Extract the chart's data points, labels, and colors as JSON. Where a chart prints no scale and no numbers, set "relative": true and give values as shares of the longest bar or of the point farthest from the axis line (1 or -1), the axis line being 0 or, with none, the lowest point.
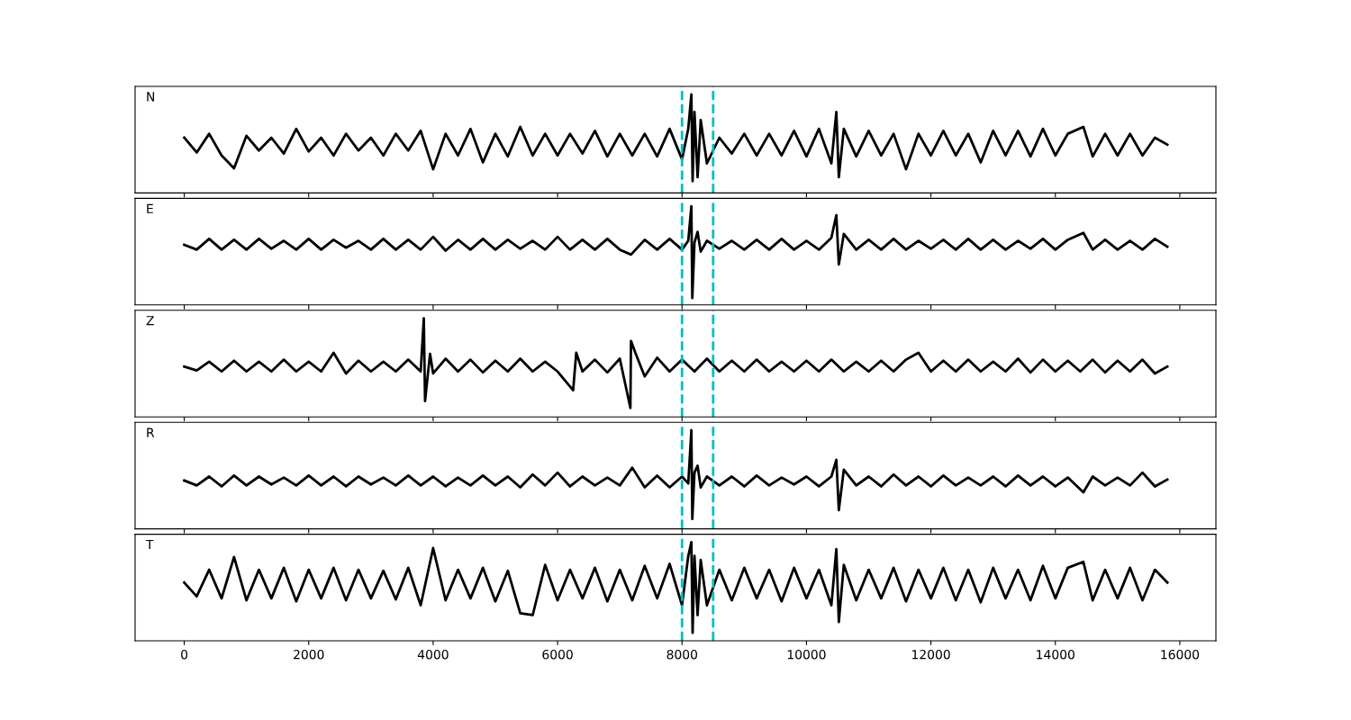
{
  "chart_data": [
    {
      "type": "line",
      "relative": true,
      "xlim": [
        -790,
        16580
      ],
      "xticks": [
        0,
        2000,
        4000,
        6000,
        8000,
        10000,
        12000,
        14000,
        16000
      ],
      "tick_labels": false,
      "annotations": [
        "N"
      ],
      "ref_lines": [
        {
          "axis": "x",
          "value": 8000,
          "color": "#00bfbf",
          "line_style": "dashed"
        },
        {
          "axis": "x",
          "value": 8500,
          "color": "#00bfbf",
          "line_style": "dashed"
        }
      ],
      "series": [
        {
          "color": "#000000",
          "x": [
            0,
            200,
            400,
            600,
            800,
            1000,
            1200,
            1400,
            1600,
            1800,
            2000,
            2200,
            2400,
            2600,
            2800,
            3000,
            3200,
            3400,
            3600,
            3800,
            4000,
            4200,
            4400,
            4600,
            4800,
            5000,
            5200,
            5400,
            5600,
            5800,
            6000,
            6200,
            6400,
            6600,
            6800,
            7000,
            7200,
            7400,
            7600,
            7800,
            8000,
            8100,
            8150,
            8170,
            8200,
            8250,
            8300,
            8400,
            8600,
            8800,
            9000,
            9200,
            9400,
            9600,
            9800,
            10000,
            10200,
            10400,
            10480,
            10520,
            10600,
            10800,
            11000,
            11200,
            11400,
            11600,
            11800,
            12000,
            12200,
            12400,
            12600,
            12800,
            13000,
            13200,
            13400,
            13600,
            13800,
            14000,
            14200,
            14450,
            14600,
            14800,
            15000,
            15200,
            15400,
            15600,
            15800
          ],
          "values": [
            0.56,
            0.41,
            0.6,
            0.38,
            0.25,
            0.58,
            0.43,
            0.56,
            0.4,
            0.65,
            0.42,
            0.56,
            0.38,
            0.6,
            0.43,
            0.56,
            0.38,
            0.6,
            0.43,
            0.63,
            0.24,
            0.6,
            0.38,
            0.65,
            0.31,
            0.6,
            0.37,
            0.67,
            0.38,
            0.6,
            0.38,
            0.6,
            0.4,
            0.63,
            0.37,
            0.6,
            0.38,
            0.6,
            0.37,
            0.65,
            0.34,
            0.65,
            1.0,
            0.12,
            0.82,
            0.16,
            0.74,
            0.3,
            0.56,
            0.4,
            0.6,
            0.38,
            0.6,
            0.38,
            0.63,
            0.37,
            0.65,
            0.3,
            0.82,
            0.16,
            0.65,
            0.37,
            0.63,
            0.38,
            0.6,
            0.24,
            0.6,
            0.38,
            0.63,
            0.38,
            0.6,
            0.31,
            0.63,
            0.38,
            0.63,
            0.37,
            0.65,
            0.38,
            0.6,
            0.67,
            0.37,
            0.6,
            0.38,
            0.6,
            0.38,
            0.56,
            0.49
          ]
        }
      ]
    },
    {
      "type": "line",
      "relative": true,
      "xlim": [
        -790,
        16580
      ],
      "xticks": [
        0,
        2000,
        4000,
        6000,
        8000,
        10000,
        12000,
        14000,
        16000
      ],
      "tick_labels": false,
      "annotations": [
        "E"
      ],
      "ref_lines": [
        {
          "axis": "x",
          "value": 8000,
          "color": "#00bfbf",
          "line_style": "dashed"
        },
        {
          "axis": "x",
          "value": 8500,
          "color": "#00bfbf",
          "line_style": "dashed"
        }
      ],
      "series": [
        {
          "color": "#000000",
          "x": [
            0,
            200,
            400,
            600,
            800,
            1000,
            1200,
            1400,
            1600,
            1800,
            2000,
            2200,
            2400,
            2600,
            2800,
            3000,
            3200,
            3400,
            3600,
            3800,
            4000,
            4200,
            4400,
            4600,
            4800,
            5000,
            5200,
            5400,
            5600,
            5800,
            6000,
            6200,
            6400,
            6600,
            6800,
            7000,
            7180,
            7400,
            7600,
            7800,
            8000,
            8100,
            8150,
            8165,
            8200,
            8250,
            8300,
            8400,
            8600,
            8800,
            9000,
            9200,
            9400,
            9600,
            9800,
            10000,
            10200,
            10400,
            10480,
            10520,
            10600,
            10800,
            11000,
            11200,
            11400,
            11600,
            11800,
            12000,
            12200,
            12400,
            12600,
            12800,
            13000,
            13200,
            13400,
            13600,
            13800,
            14000,
            14200,
            14450,
            14600,
            14800,
            15000,
            15200,
            15400,
            15600,
            15800
          ],
          "values": [
            0.61,
            0.56,
            0.67,
            0.56,
            0.66,
            0.56,
            0.67,
            0.57,
            0.65,
            0.56,
            0.67,
            0.56,
            0.66,
            0.58,
            0.65,
            0.56,
            0.67,
            0.56,
            0.66,
            0.56,
            0.69,
            0.55,
            0.66,
            0.56,
            0.67,
            0.56,
            0.66,
            0.57,
            0.65,
            0.56,
            0.69,
            0.56,
            0.66,
            0.56,
            0.67,
            0.56,
            0.51,
            0.66,
            0.56,
            0.67,
            0.56,
            0.65,
            1.0,
            0.07,
            0.63,
            0.74,
            0.54,
            0.65,
            0.57,
            0.65,
            0.56,
            0.66,
            0.56,
            0.67,
            0.56,
            0.65,
            0.56,
            0.68,
            0.91,
            0.41,
            0.72,
            0.56,
            0.66,
            0.56,
            0.67,
            0.56,
            0.65,
            0.57,
            0.66,
            0.56,
            0.67,
            0.56,
            0.66,
            0.56,
            0.65,
            0.57,
            0.67,
            0.56,
            0.66,
            0.73,
            0.56,
            0.66,
            0.56,
            0.65,
            0.56,
            0.67,
            0.59
          ]
        }
      ]
    },
    {
      "type": "line",
      "relative": true,
      "xlim": [
        -790,
        16580
      ],
      "xticks": [
        0,
        2000,
        4000,
        6000,
        8000,
        10000,
        12000,
        14000,
        16000
      ],
      "tick_labels": false,
      "annotations": [
        "Z"
      ],
      "ref_lines": [
        {
          "axis": "x",
          "value": 8000,
          "color": "#00bfbf",
          "line_style": "dashed"
        },
        {
          "axis": "x",
          "value": 8500,
          "color": "#00bfbf",
          "line_style": "dashed"
        }
      ],
      "series": [
        {
          "color": "#000000",
          "x": [
            0,
            200,
            400,
            600,
            800,
            1000,
            1200,
            1400,
            1600,
            1800,
            2000,
            2200,
            2400,
            2600,
            2800,
            3000,
            3200,
            3400,
            3600,
            3800,
            3850,
            3870,
            3950,
            4000,
            4200,
            4400,
            4600,
            4800,
            5000,
            5200,
            5400,
            5600,
            5800,
            6000,
            6250,
            6300,
            6400,
            6600,
            6800,
            7000,
            7170,
            7180,
            7250,
            7400,
            7600,
            7800,
            8000,
            8200,
            8400,
            8600,
            8800,
            9000,
            9200,
            9400,
            9600,
            9800,
            10000,
            10200,
            10400,
            10600,
            10800,
            11000,
            11200,
            11400,
            11600,
            11800,
            12000,
            12200,
            12400,
            12600,
            12800,
            13000,
            13200,
            13400,
            13600,
            13800,
            14000,
            14200,
            14400,
            14600,
            14800,
            15000,
            15200,
            15400,
            15600,
            15800
          ],
          "values": [
            0.51,
            0.47,
            0.56,
            0.46,
            0.57,
            0.46,
            0.56,
            0.46,
            0.58,
            0.46,
            0.56,
            0.46,
            0.65,
            0.44,
            0.57,
            0.46,
            0.56,
            0.46,
            0.58,
            0.46,
            1.0,
            0.16,
            0.64,
            0.44,
            0.59,
            0.46,
            0.58,
            0.45,
            0.57,
            0.46,
            0.59,
            0.46,
            0.56,
            0.46,
            0.27,
            0.65,
            0.46,
            0.58,
            0.45,
            0.59,
            0.09,
            0.77,
            0.65,
            0.41,
            0.6,
            0.46,
            0.58,
            0.46,
            0.59,
            0.46,
            0.57,
            0.46,
            0.58,
            0.46,
            0.56,
            0.46,
            0.57,
            0.46,
            0.58,
            0.46,
            0.56,
            0.46,
            0.57,
            0.46,
            0.58,
            0.65,
            0.46,
            0.57,
            0.46,
            0.58,
            0.46,
            0.56,
            0.46,
            0.59,
            0.45,
            0.58,
            0.46,
            0.57,
            0.46,
            0.58,
            0.45,
            0.57,
            0.46,
            0.58,
            0.44,
            0.51
          ]
        }
      ]
    },
    {
      "type": "line",
      "relative": true,
      "xlim": [
        -790,
        16580
      ],
      "xticks": [
        0,
        2000,
        4000,
        6000,
        8000,
        10000,
        12000,
        14000,
        16000
      ],
      "tick_labels": false,
      "annotations": [
        "R"
      ],
      "ref_lines": [
        {
          "axis": "x",
          "value": 8000,
          "color": "#00bfbf",
          "line_style": "dashed"
        },
        {
          "axis": "x",
          "value": 8500,
          "color": "#00bfbf",
          "line_style": "dashed"
        }
      ],
      "series": [
        {
          "color": "#000000",
          "x": [
            0,
            200,
            400,
            600,
            800,
            1000,
            1200,
            1400,
            1600,
            1800,
            2000,
            2200,
            2400,
            2600,
            2800,
            3000,
            3200,
            3400,
            3600,
            3800,
            4000,
            4200,
            4400,
            4600,
            4800,
            5000,
            5200,
            5400,
            5600,
            5800,
            6000,
            6200,
            6400,
            6600,
            6800,
            7000,
            7200,
            7400,
            7600,
            7800,
            8000,
            8100,
            8150,
            8165,
            8200,
            8250,
            8300,
            8400,
            8600,
            8800,
            9000,
            9200,
            9400,
            9600,
            9800,
            10000,
            10200,
            10400,
            10480,
            10520,
            10600,
            10800,
            11000,
            11200,
            11400,
            11600,
            11800,
            12000,
            12200,
            12400,
            12600,
            12800,
            13000,
            13200,
            13400,
            13600,
            13800,
            14000,
            14200,
            14450,
            14600,
            14800,
            15000,
            15200,
            15400,
            15600,
            15800
          ],
          "values": [
            0.49,
            0.44,
            0.53,
            0.43,
            0.54,
            0.44,
            0.53,
            0.45,
            0.52,
            0.44,
            0.54,
            0.44,
            0.53,
            0.43,
            0.53,
            0.45,
            0.52,
            0.44,
            0.54,
            0.44,
            0.53,
            0.43,
            0.52,
            0.44,
            0.54,
            0.44,
            0.53,
            0.42,
            0.55,
            0.44,
            0.57,
            0.43,
            0.53,
            0.44,
            0.52,
            0.44,
            0.62,
            0.42,
            0.54,
            0.42,
            0.53,
            0.46,
            1.0,
            0.1,
            0.57,
            0.64,
            0.42,
            0.53,
            0.44,
            0.53,
            0.43,
            0.54,
            0.44,
            0.52,
            0.45,
            0.53,
            0.43,
            0.53,
            0.7,
            0.19,
            0.6,
            0.44,
            0.53,
            0.43,
            0.55,
            0.44,
            0.53,
            0.43,
            0.54,
            0.44,
            0.52,
            0.44,
            0.53,
            0.43,
            0.54,
            0.44,
            0.53,
            0.43,
            0.52,
            0.37,
            0.53,
            0.44,
            0.52,
            0.44,
            0.57,
            0.43,
            0.5
          ]
        }
      ]
    },
    {
      "type": "line",
      "relative": true,
      "xlim": [
        -790,
        16580
      ],
      "xticks": [
        0,
        2000,
        4000,
        6000,
        8000,
        10000,
        12000,
        14000,
        16000
      ],
      "tick_labels": "x",
      "annotations": [
        "T"
      ],
      "ref_lines": [
        {
          "axis": "x",
          "value": 8000,
          "color": "#00bfbf",
          "line_style": "dashed"
        },
        {
          "axis": "x",
          "value": 8500,
          "color": "#00bfbf",
          "line_style": "dashed"
        }
      ],
      "series": [
        {
          "color": "#000000",
          "x": [
            0,
            200,
            400,
            600,
            800,
            1000,
            1200,
            1400,
            1600,
            1800,
            2000,
            2200,
            2400,
            2600,
            2800,
            3000,
            3200,
            3400,
            3600,
            3800,
            4000,
            4200,
            4400,
            4600,
            4800,
            5000,
            5200,
            5400,
            5600,
            5800,
            6000,
            6200,
            6400,
            6600,
            6800,
            7000,
            7200,
            7400,
            7600,
            7800,
            8000,
            8100,
            8150,
            8170,
            8200,
            8250,
            8300,
            8400,
            8600,
            8800,
            9000,
            9200,
            9400,
            9600,
            9800,
            10000,
            10200,
            10400,
            10480,
            10520,
            10600,
            10800,
            11000,
            11200,
            11400,
            11600,
            11800,
            12000,
            12200,
            12400,
            12600,
            12800,
            13000,
            13200,
            13400,
            13600,
            13800,
            14000,
            14200,
            14450,
            14600,
            14800,
            15000,
            15200,
            15400,
            15600,
            15800
          ],
          "values": [
            0.59,
            0.45,
            0.72,
            0.43,
            0.85,
            0.41,
            0.72,
            0.43,
            0.74,
            0.4,
            0.72,
            0.43,
            0.74,
            0.41,
            0.72,
            0.43,
            0.71,
            0.42,
            0.74,
            0.36,
            0.94,
            0.41,
            0.72,
            0.43,
            0.74,
            0.4,
            0.71,
            0.28,
            0.26,
            0.77,
            0.41,
            0.72,
            0.43,
            0.74,
            0.4,
            0.72,
            0.41,
            0.76,
            0.43,
            0.78,
            0.36,
            0.86,
            1.0,
            0.08,
            0.86,
            0.26,
            0.82,
            0.36,
            0.72,
            0.41,
            0.74,
            0.43,
            0.72,
            0.4,
            0.74,
            0.43,
            0.72,
            0.36,
            0.93,
            0.19,
            0.77,
            0.41,
            0.72,
            0.43,
            0.74,
            0.4,
            0.72,
            0.43,
            0.74,
            0.41,
            0.72,
            0.39,
            0.74,
            0.43,
            0.72,
            0.41,
            0.76,
            0.43,
            0.74,
            0.8,
            0.41,
            0.72,
            0.43,
            0.74,
            0.41,
            0.72,
            0.59
          ]
        }
      ]
    }
  ]
}
